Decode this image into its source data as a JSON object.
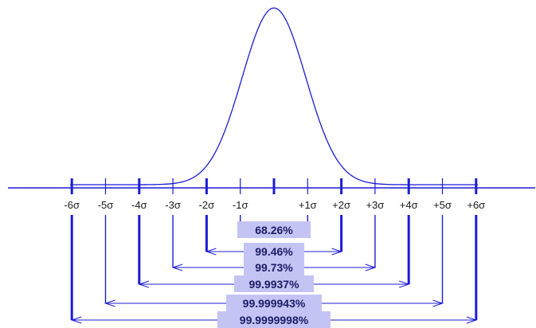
{
  "colors": {
    "line": "#1c1cd6",
    "label_box": "#c4c4f4",
    "text": "#1a1a1a",
    "pct_text": "#1a1a66"
  },
  "ticks": [
    "-6σ",
    "-5σ",
    "-4σ",
    "-3σ",
    "-2σ",
    "-1σ",
    "",
    "+1σ",
    "+2σ",
    "+3σ",
    "+4σ",
    "+5σ",
    "+6σ"
  ],
  "ranges": [
    {
      "sigma": 1,
      "label": "68.26%"
    },
    {
      "sigma": 2,
      "label": "99.46%"
    },
    {
      "sigma": 3,
      "label": "99.73%"
    },
    {
      "sigma": 4,
      "label": "99.9937%"
    },
    {
      "sigma": 5,
      "label": "99.999943%"
    },
    {
      "sigma": 6,
      "label": "99.9999998%"
    }
  ]
}
